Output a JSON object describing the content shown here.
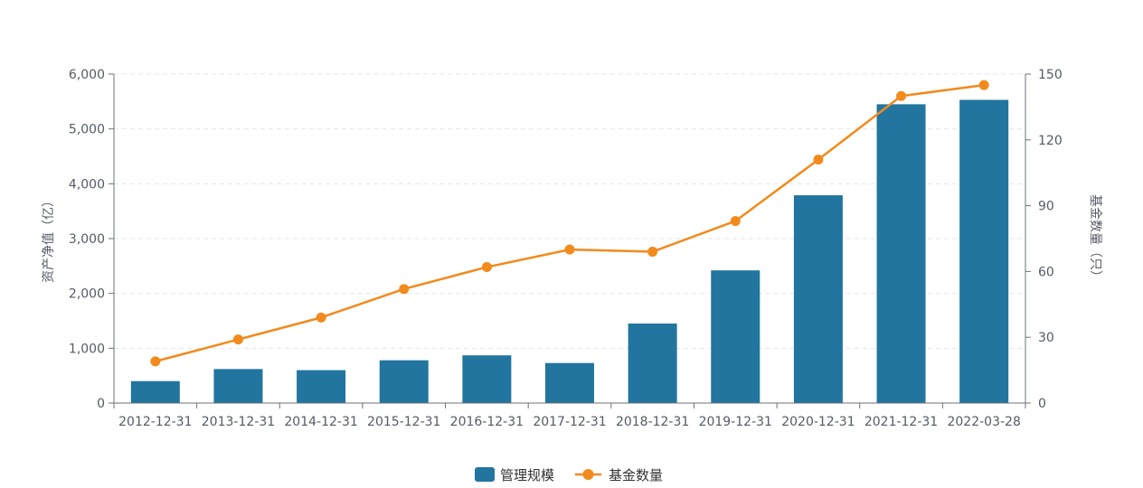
{
  "chart_data": {
    "type": "bar",
    "title": "",
    "categories": [
      "2012-12-31",
      "2013-12-31",
      "2014-12-31",
      "2015-12-31",
      "2016-12-31",
      "2017-12-31",
      "2018-12-31",
      "2019-12-31",
      "2020-12-31",
      "2021-12-31",
      "2022-03-28"
    ],
    "y_left": {
      "label": "资产净值（亿）",
      "ylim": [
        0,
        6000
      ],
      "ticks": [
        0,
        1000,
        2000,
        3000,
        4000,
        5000,
        6000
      ],
      "tick_labels": [
        "0",
        "1,000",
        "2,000",
        "3,000",
        "4,000",
        "5,000",
        "6,000"
      ]
    },
    "y_right": {
      "label": "基金数量（只）",
      "ylim": [
        0,
        150
      ],
      "ticks": [
        0,
        30,
        60,
        90,
        120,
        150
      ],
      "tick_labels": [
        "0",
        "30",
        "60",
        "90",
        "120",
        "150"
      ]
    },
    "series": [
      {
        "name": "管理规模",
        "type": "bar",
        "axis": "left",
        "color": "#21759f",
        "values": [
          400,
          620,
          600,
          780,
          870,
          730,
          1450,
          2420,
          3790,
          5450,
          5530
        ]
      },
      {
        "name": "基金数量",
        "type": "line",
        "axis": "right",
        "color": "#f28a1c",
        "values": [
          19,
          29,
          39,
          52,
          62,
          70,
          69,
          83,
          111,
          140,
          145
        ]
      }
    ],
    "grid": true,
    "legend": "bottom-center"
  }
}
